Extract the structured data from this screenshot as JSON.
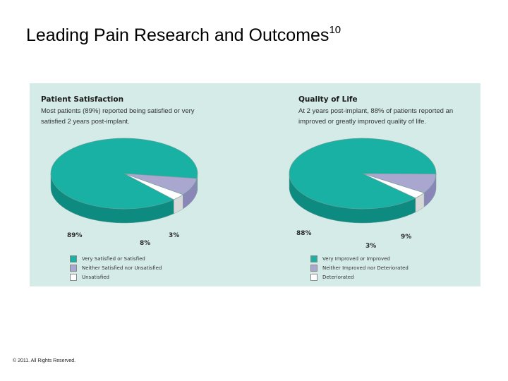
{
  "slide": {
    "title": "Leading Pain Research and Outcomes",
    "superscript": "10",
    "footer": "© 2011. All Rights Reserved."
  },
  "colors": {
    "teal": "#19b1a3",
    "teal_side": "#0e8b80",
    "lavender": "#a9a6cf",
    "lavender_side": "#8a87b8",
    "white": "#ffffff",
    "white_side": "#d8d8d8",
    "panel_bg": "#d4ebe7"
  },
  "chart_data": [
    {
      "type": "pie",
      "title": "Patient Satisfaction",
      "subtitle_line1": "Most patients (89%) reported being satisfied or very",
      "subtitle_line2": "satisfied 2 years post-implant.",
      "series": [
        {
          "name": "Very Satisfied or Satisfied",
          "value": 89,
          "label": "89%"
        },
        {
          "name": "Neither Satisfied nor Unsatisfied",
          "value": 8,
          "label": "8%"
        },
        {
          "name": "Unsatisfied",
          "value": 3,
          "label": "3%"
        }
      ],
      "legend_position": "bottom-left"
    },
    {
      "type": "pie",
      "title": "Quality of Life",
      "subtitle_line1": "At 2 years post-implant, 88% of patients reported an",
      "subtitle_line2": "improved or greatly improved quality of life.",
      "series": [
        {
          "name": "Very Improved or Improved",
          "value": 88,
          "label": "88%"
        },
        {
          "name": "Neither Improved nor Deteriorated",
          "value": 9,
          "label": "9%"
        },
        {
          "name": "Deteriorated",
          "value": 3,
          "label": "3%"
        }
      ],
      "legend_position": "bottom-left"
    }
  ]
}
